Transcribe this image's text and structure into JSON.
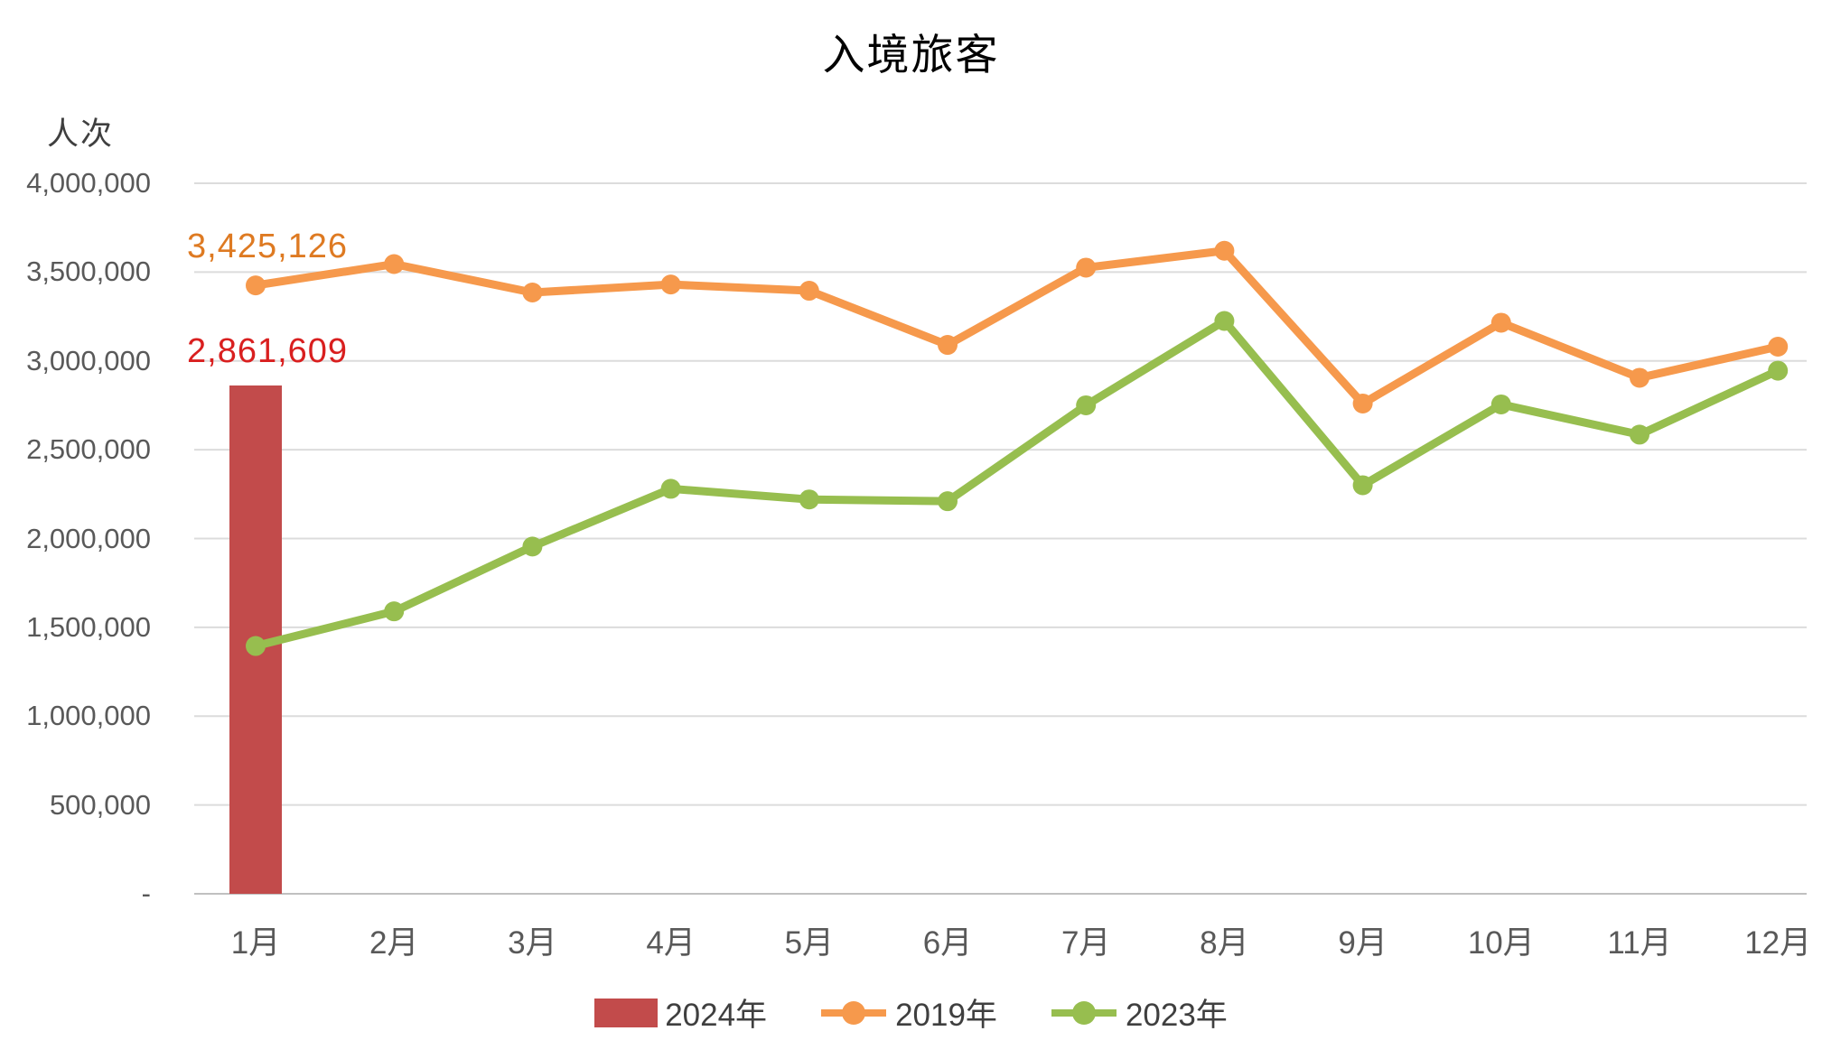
{
  "title": "入境旅客",
  "y_axis": {
    "unit_label": "人次",
    "tick_labels": [
      "4,000,000",
      "3,500,000",
      "3,000,000",
      "2,500,000",
      "2,000,000",
      "1,500,000",
      "1,000,000",
      "500,000",
      "-"
    ],
    "tick_values": [
      4000000,
      3500000,
      3000000,
      2500000,
      2000000,
      1500000,
      1000000,
      500000,
      0
    ]
  },
  "x_axis": {
    "labels": [
      "1月",
      "2月",
      "3月",
      "4月",
      "5月",
      "6月",
      "7月",
      "8月",
      "9月",
      "10月",
      "11月",
      "12月"
    ]
  },
  "data_labels": {
    "jan_2019": "3,425,126",
    "jan_2024": "2,861,609"
  },
  "colors": {
    "bar_2024": "#C24B4B",
    "line_2019": "#F6994C",
    "line_2023": "#97BE4F",
    "label_2019": "#DE7A22",
    "label_2024": "#D91F1F",
    "gridline": "#DCDCDC",
    "axis_line": "#C0C0C0",
    "axis_text": "#595959"
  },
  "legend": [
    {
      "label": "2024年",
      "marker": "bar",
      "color": "#C24B4B"
    },
    {
      "label": "2019年",
      "marker": "line",
      "color": "#F6994C"
    },
    {
      "label": "2023年",
      "marker": "line",
      "color": "#97BE4F"
    }
  ],
  "chart_data": {
    "type": "combo",
    "title": "入境旅客",
    "ylabel": "人次",
    "ylim": [
      0,
      4000000
    ],
    "grid": true,
    "legend_position": "bottom",
    "categories": [
      "1月",
      "2月",
      "3月",
      "4月",
      "5月",
      "6月",
      "7月",
      "8月",
      "9月",
      "10月",
      "11月",
      "12月"
    ],
    "series": [
      {
        "name": "2024年",
        "type": "bar",
        "color": "#C24B4B",
        "values": [
          2861609,
          null,
          null,
          null,
          null,
          null,
          null,
          null,
          null,
          null,
          null,
          null
        ]
      },
      {
        "name": "2019年",
        "type": "line",
        "color": "#F6994C",
        "values": [
          3425126,
          3545000,
          3385000,
          3430000,
          3395000,
          3090000,
          3525000,
          3620000,
          2760000,
          3215000,
          2905000,
          3080000
        ]
      },
      {
        "name": "2023年",
        "type": "line",
        "color": "#97BE4F",
        "values": [
          1395000,
          1590000,
          1955000,
          2280000,
          2220000,
          2210000,
          2750000,
          3225000,
          2300000,
          2755000,
          2585000,
          2945000
        ]
      }
    ],
    "annotations": [
      {
        "text": "3,425,126",
        "series": "2019年",
        "category": "1月",
        "color": "#DE7A22"
      },
      {
        "text": "2,861,609",
        "series": "2024年",
        "category": "1月",
        "color": "#D91F1F"
      }
    ]
  }
}
